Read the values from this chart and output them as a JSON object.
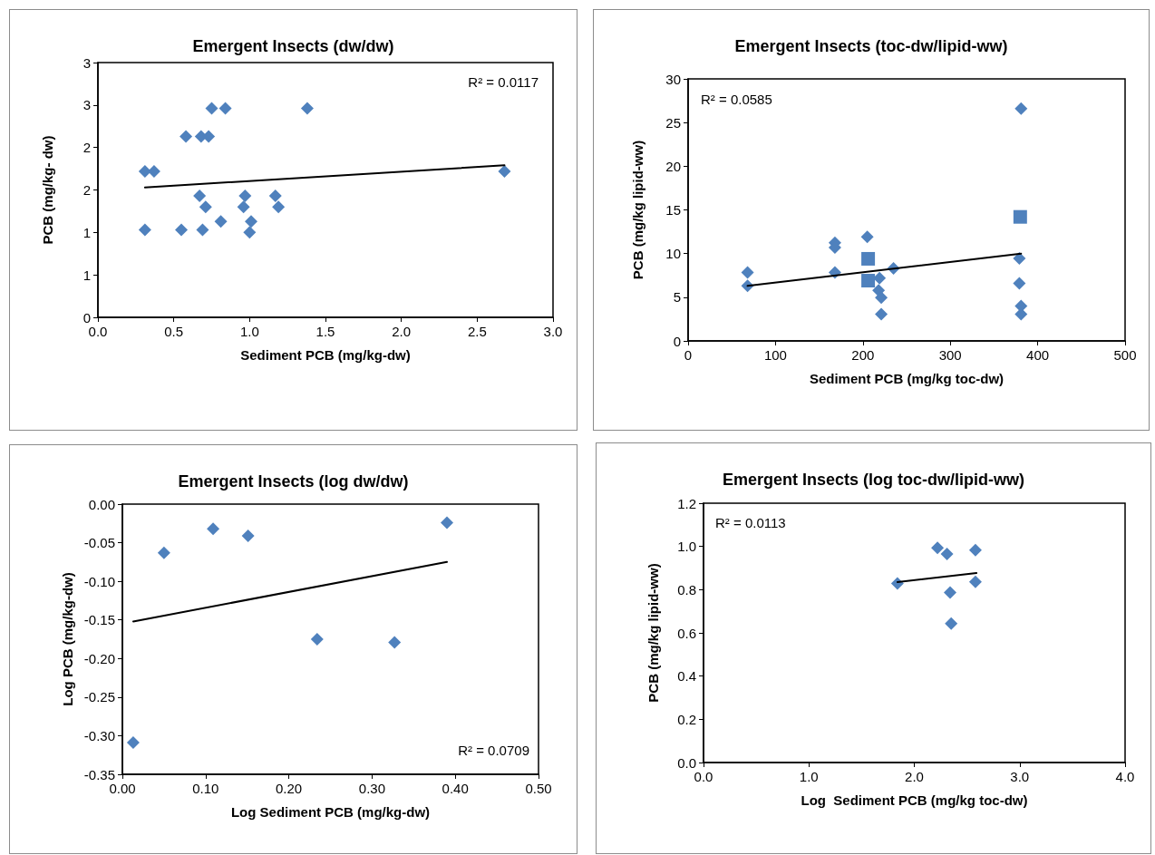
{
  "chart_data": [
    {
      "type": "scatter",
      "title": "Emergent Insects (dw/dw)",
      "xlabel": "Sediment PCB (mg/kg-dw)",
      "ylabel": "PCB (mg/kg- dw)",
      "annotations": [
        "R² = 0.0117"
      ],
      "xlim": [
        0,
        3
      ],
      "ylim": [
        0,
        3
      ],
      "xticks": [
        {
          "value": 0,
          "label": "0.0"
        },
        {
          "value": 0.5,
          "label": "0.5"
        },
        {
          "value": 1,
          "label": "1.0"
        },
        {
          "value": 1.5,
          "label": "1.5"
        },
        {
          "value": 2,
          "label": "2.0"
        },
        {
          "value": 2.5,
          "label": "2.5"
        },
        {
          "value": 3,
          "label": "3.0"
        }
      ],
      "yticks": [
        0,
        {
          "value": 0.5,
          "label": "1"
        },
        1,
        {
          "value": 1.5,
          "label": "2"
        },
        2,
        {
          "value": 2.5,
          "label": "3"
        },
        3
      ],
      "grid": false,
      "marker": "diamond",
      "series": [
        {
          "color": "#4f81bd",
          "x": [
            0.31,
            0.37,
            0.75,
            0.84,
            1.38,
            0.58,
            0.68,
            0.73,
            0.67,
            0.71,
            0.97,
            0.96,
            1.17,
            1.19,
            0.81,
            1.01,
            0.31,
            0.55,
            0.69,
            1.0,
            2.68
          ],
          "values": [
            1.72,
            1.72,
            2.46,
            2.46,
            2.46,
            2.13,
            2.13,
            2.13,
            1.43,
            1.3,
            1.43,
            1.3,
            1.43,
            1.3,
            1.13,
            1.13,
            1.03,
            1.03,
            1.03,
            1.0,
            1.72
          ]
        },
        {
          "type": "line",
          "color": "#000000",
          "marker": "none",
          "x": [
            0.31,
            2.68
          ],
          "values": [
            1.53,
            1.79
          ]
        }
      ]
    },
    {
      "type": "scatter",
      "title": "Emergent Insects (toc-dw/lipid-ww)",
      "xlabel": "Sediment PCB (mg/kg toc-dw)",
      "ylabel": "PCB (mg/kg lipid-ww)",
      "annotations": [
        "R² = 0.0585"
      ],
      "xlim": [
        0,
        500
      ],
      "ylim": [
        0,
        30
      ],
      "xticks": [
        0,
        100,
        200,
        300,
        400,
        500
      ],
      "yticks": [
        0,
        5,
        10,
        15,
        20,
        25,
        30
      ],
      "grid": false,
      "marker": "diamond",
      "series": [
        {
          "color": "#4f81bd",
          "x": [
            68,
            68,
            168,
            168,
            168,
            205,
            219,
            235,
            218,
            221,
            221,
            381,
            379,
            379,
            381,
            381
          ],
          "values": [
            7.85,
            6.3,
            11.25,
            10.7,
            7.85,
            11.9,
            7.2,
            8.3,
            5.8,
            4.95,
            3.05,
            26.6,
            9.45,
            6.6,
            4.0,
            3.05
          ]
        },
        {
          "color": "#4f81bd",
          "marker": "square",
          "x": [
            206,
            206,
            380
          ],
          "values": [
            9.4,
            6.9,
            14.2
          ]
        },
        {
          "type": "line",
          "color": "#000000",
          "marker": "none",
          "x": [
            68,
            381
          ],
          "values": [
            6.3,
            10.0
          ]
        }
      ]
    },
    {
      "type": "scatter",
      "title": "Emergent Insects (log dw/dw)",
      "xlabel": "Log Sediment PCB (mg/kg-dw)",
      "ylabel": "Log PCB (mg/kg-dw)",
      "annotations": [
        "R² = 0.0709"
      ],
      "xlim": [
        0,
        0.5
      ],
      "ylim": [
        -0.35,
        0
      ],
      "xticks": [
        {
          "value": 0,
          "label": "0.00"
        },
        {
          "value": 0.1,
          "label": "0.10"
        },
        {
          "value": 0.2,
          "label": "0.20"
        },
        {
          "value": 0.3,
          "label": "0.30"
        },
        {
          "value": 0.4,
          "label": "0.40"
        },
        {
          "value": 0.5,
          "label": "0.50"
        }
      ],
      "yticks": [
        {
          "value": 0,
          "label": "0.00"
        },
        -0.05,
        {
          "value": -0.1,
          "label": "-0.10"
        },
        -0.15,
        {
          "value": -0.2,
          "label": "-0.20"
        },
        -0.25,
        {
          "value": -0.3,
          "label": "-0.30"
        },
        -0.35
      ],
      "grid": false,
      "marker": "diamond",
      "series": [
        {
          "color": "#4f81bd",
          "x": [
            0.013,
            0.05,
            0.109,
            0.151,
            0.234,
            0.327,
            0.39
          ],
          "values": [
            -0.309,
            -0.063,
            -0.032,
            -0.041,
            -0.175,
            -0.179,
            -0.024
          ]
        },
        {
          "type": "line",
          "color": "#000000",
          "marker": "none",
          "x": [
            0.013,
            0.39
          ],
          "values": [
            -0.152,
            -0.075
          ]
        }
      ]
    },
    {
      "type": "scatter",
      "title": "Emergent Insects (log toc-dw/lipid-ww)",
      "xlabel": "Log  Sediment PCB (mg/kg toc-dw)",
      "ylabel": "PCB (mg/kg lipid-ww)",
      "annotations": [
        "R² = 0.0113"
      ],
      "xlim": [
        0,
        4
      ],
      "ylim": [
        0,
        1.2
      ],
      "xticks": [
        {
          "value": 0,
          "label": "0.0"
        },
        {
          "value": 1,
          "label": "1.0"
        },
        {
          "value": 2,
          "label": "2.0"
        },
        {
          "value": 3,
          "label": "3.0"
        },
        {
          "value": 4,
          "label": "4.0"
        }
      ],
      "yticks": [
        {
          "value": 0,
          "label": "0.0"
        },
        0.2,
        0.4,
        0.6,
        0.8,
        {
          "value": 1,
          "label": "1.0"
        },
        1.2
      ],
      "grid": false,
      "marker": "diamond",
      "series": [
        {
          "color": "#4f81bd",
          "x": [
            1.84,
            2.22,
            2.31,
            2.58,
            2.58,
            2.34,
            2.35
          ],
          "values": [
            0.829,
            0.993,
            0.965,
            0.983,
            0.836,
            0.787,
            0.643
          ]
        },
        {
          "type": "line",
          "color": "#000000",
          "marker": "none",
          "x": [
            1.84,
            2.59
          ],
          "values": [
            0.835,
            0.877
          ]
        }
      ]
    }
  ]
}
